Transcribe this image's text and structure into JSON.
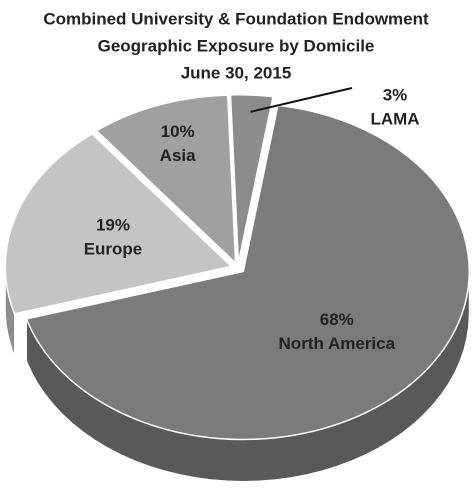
{
  "chart_data": {
    "type": "pie",
    "title": [
      "Combined University & Foundation Endowment",
      "Geographic Exposure by Domicile",
      "June 30, 2015"
    ],
    "categories": [
      "LAMA",
      "North America",
      "Europe",
      "Asia"
    ],
    "values": [
      3,
      68,
      19,
      10
    ],
    "value_labels": [
      "3%",
      "68%",
      "19%",
      "10%"
    ],
    "colors": [
      "#8c8c8c",
      "#7b7b7b",
      "#c4c4c4",
      "#a0a0a0"
    ]
  }
}
